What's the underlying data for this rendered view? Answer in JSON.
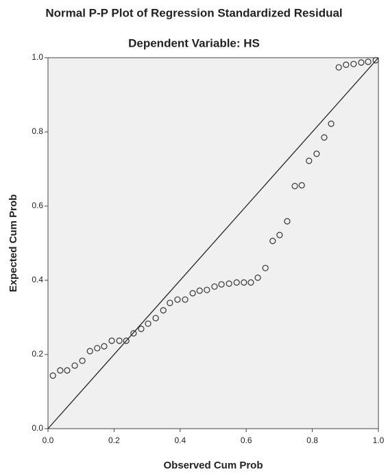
{
  "chart_data": {
    "type": "scatter",
    "title": "Normal P-P Plot of Regression Standardized Residual",
    "subtitle": "Dependent Variable: HS",
    "x_label": "Observed Cum Prob",
    "y_label": "Expected Cum Prob",
    "xlim": [
      0,
      1
    ],
    "ylim": [
      0,
      1
    ],
    "xticks": [
      {
        "value": 0,
        "label": "0.0"
      },
      {
        "value": 0.2,
        "label": "0.2"
      },
      {
        "value": 0.4,
        "label": "0.4"
      },
      {
        "value": 0.6,
        "label": "0.6"
      },
      {
        "value": 0.8,
        "label": "0.8"
      },
      {
        "value": 1,
        "label": "1.0"
      }
    ],
    "yticks": [
      {
        "value": 0,
        "label": "0.0"
      },
      {
        "value": 0.2,
        "label": "0.2"
      },
      {
        "value": 0.4,
        "label": "0.4"
      },
      {
        "value": 0.6,
        "label": "0.6"
      },
      {
        "value": 0.8,
        "label": "0.8"
      },
      {
        "value": 1,
        "label": "1.0"
      }
    ],
    "reference_line": true,
    "color": "#333333",
    "x": [
      0.015,
      0.037,
      0.058,
      0.081,
      0.104,
      0.127,
      0.149,
      0.17,
      0.193,
      0.216,
      0.237,
      0.259,
      0.282,
      0.303,
      0.326,
      0.349,
      0.369,
      0.392,
      0.415,
      0.438,
      0.459,
      0.481,
      0.504,
      0.525,
      0.548,
      0.571,
      0.593,
      0.614,
      0.635,
      0.658,
      0.68,
      0.701,
      0.724,
      0.747,
      0.768,
      0.79,
      0.813,
      0.836,
      0.857,
      0.88,
      0.902,
      0.925,
      0.948,
      0.969,
      0.992
    ],
    "values": [
      0.143,
      0.157,
      0.157,
      0.17,
      0.183,
      0.209,
      0.217,
      0.222,
      0.237,
      0.237,
      0.237,
      0.257,
      0.269,
      0.283,
      0.298,
      0.319,
      0.339,
      0.348,
      0.348,
      0.365,
      0.372,
      0.374,
      0.383,
      0.389,
      0.391,
      0.394,
      0.394,
      0.394,
      0.407,
      0.433,
      0.506,
      0.522,
      0.559,
      0.654,
      0.656,
      0.722,
      0.741,
      0.785,
      0.822,
      0.974,
      0.981,
      0.983,
      0.987,
      0.989,
      0.993
    ]
  }
}
